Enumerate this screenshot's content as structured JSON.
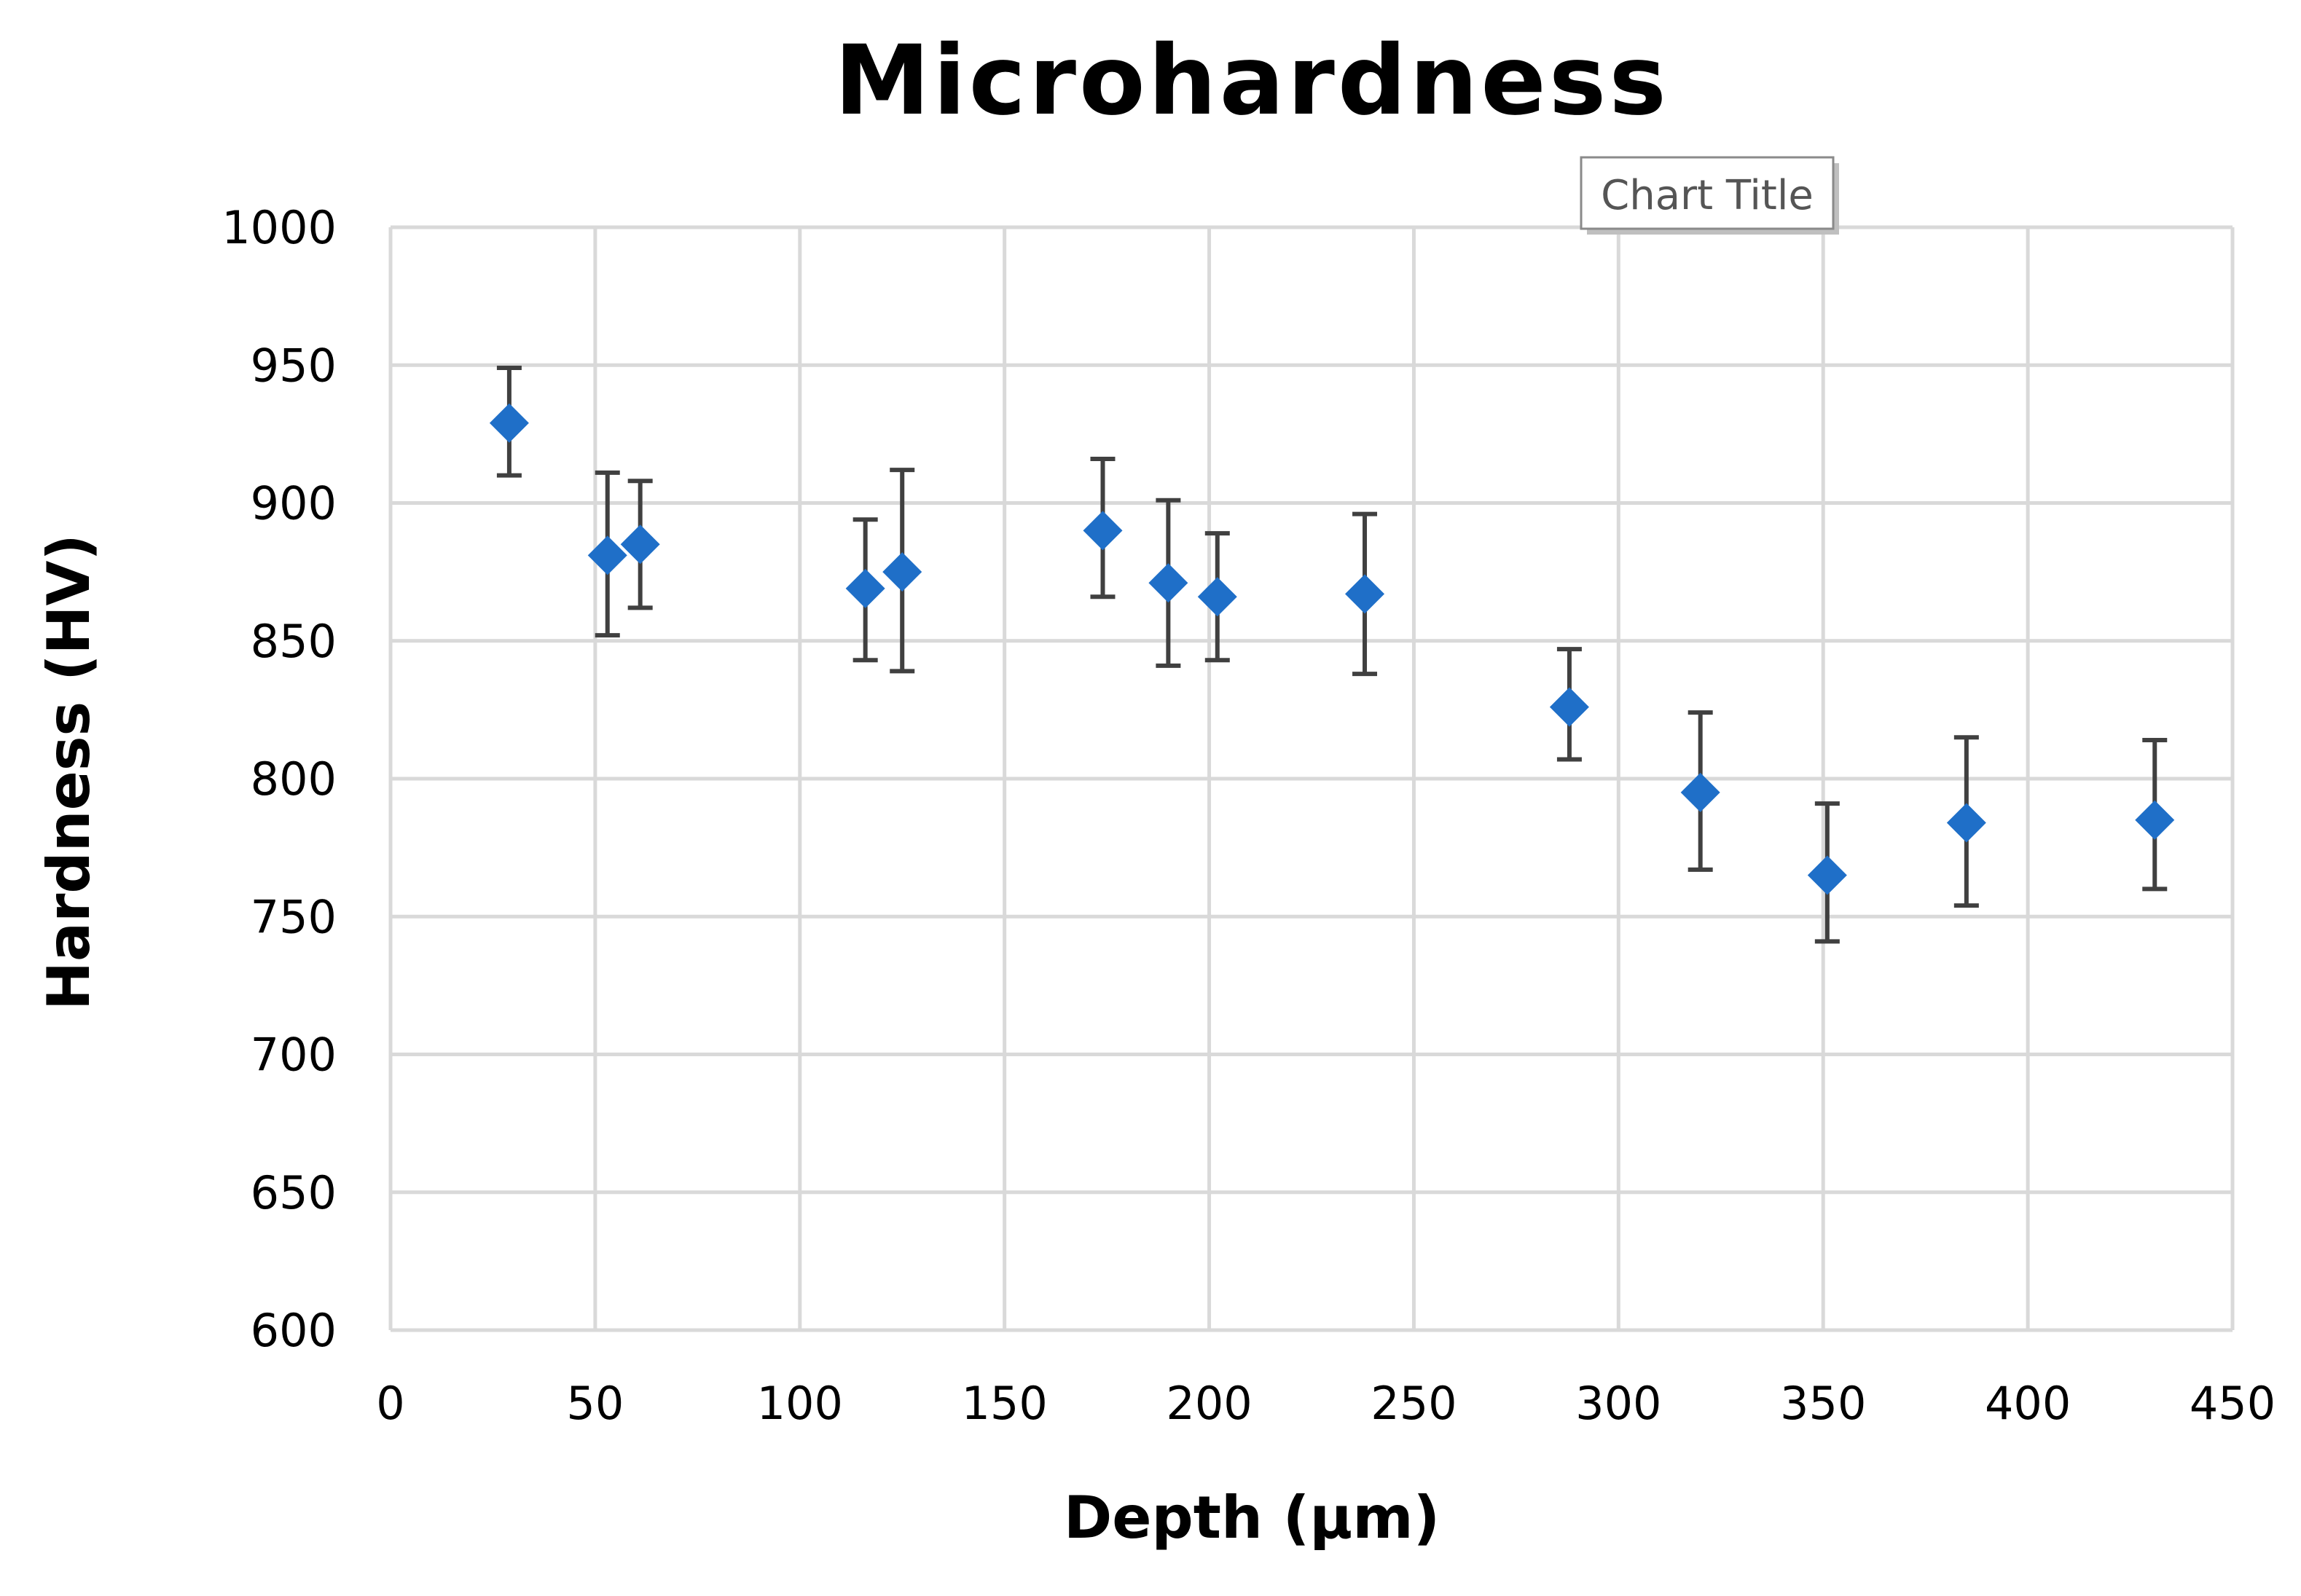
{
  "chart_data": {
    "type": "scatter",
    "title": "Microhardness",
    "xlabel": "Depth (µm)",
    "ylabel": "Hardness (HV)",
    "xlim": [
      0,
      450
    ],
    "ylim": [
      600,
      1000
    ],
    "x_ticks": [
      0,
      50,
      100,
      150,
      200,
      250,
      300,
      350,
      400,
      450
    ],
    "y_ticks": [
      600,
      650,
      700,
      750,
      800,
      850,
      900,
      950,
      1000
    ],
    "grid": true,
    "legend": "none",
    "series": [
      {
        "name": "Hardness",
        "color": "#1f6fc8",
        "marker": "diamond",
        "points": [
          {
            "x": 29,
            "y": 929,
            "err_low": 910,
            "err_high": 949
          },
          {
            "x": 53,
            "y": 881,
            "err_low": 852,
            "err_high": 911
          },
          {
            "x": 61,
            "y": 885,
            "err_low": 862,
            "err_high": 908
          },
          {
            "x": 116,
            "y": 869,
            "err_low": 843,
            "err_high": 894
          },
          {
            "x": 125,
            "y": 875,
            "err_low": 839,
            "err_high": 912
          },
          {
            "x": 174,
            "y": 890,
            "err_low": 866,
            "err_high": 916
          },
          {
            "x": 190,
            "y": 871,
            "err_low": 841,
            "err_high": 901
          },
          {
            "x": 202,
            "y": 866,
            "err_low": 843,
            "err_high": 889
          },
          {
            "x": 238,
            "y": 867,
            "err_low": 838,
            "err_high": 896
          },
          {
            "x": 288,
            "y": 826,
            "err_low": 807,
            "err_high": 847
          },
          {
            "x": 320,
            "y": 795,
            "err_low": 767,
            "err_high": 824
          },
          {
            "x": 351,
            "y": 765,
            "err_low": 741,
            "err_high": 791
          },
          {
            "x": 385,
            "y": 784,
            "err_low": 754,
            "err_high": 815
          },
          {
            "x": 431,
            "y": 785,
            "err_low": 760,
            "err_high": 814
          }
        ]
      }
    ]
  },
  "tooltip": {
    "label": "Chart Title"
  }
}
